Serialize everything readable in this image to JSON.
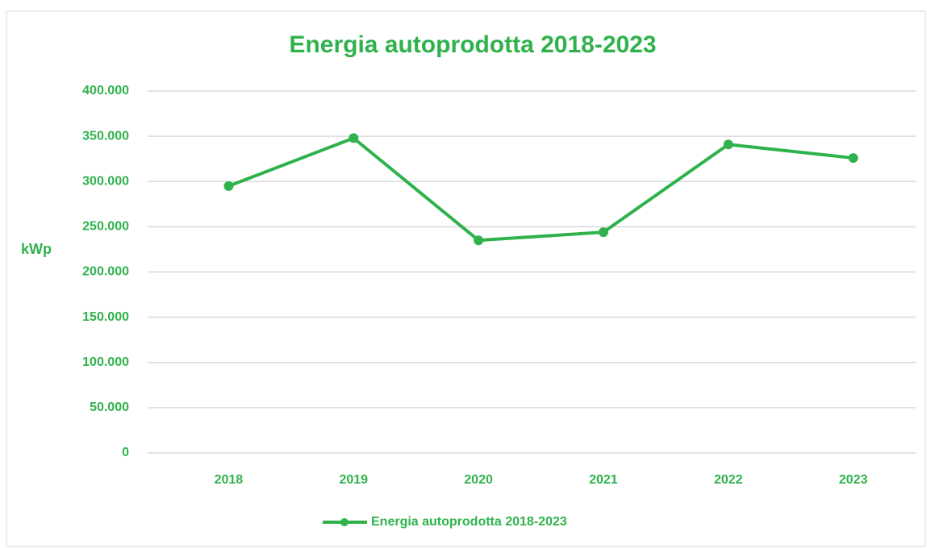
{
  "chart_data": {
    "type": "line",
    "title": "Energia autoprodotta 2018-2023",
    "y_label": "kWp",
    "categories": [
      "2018",
      "2019",
      "2020",
      "2021",
      "2022",
      "2023"
    ],
    "series": [
      {
        "name": "Energia autoprodotta 2018-2023",
        "color": "#2fb24c",
        "values": [
          295000,
          348000,
          235000,
          244000,
          341000,
          326000
        ]
      }
    ],
    "ylim": [
      0,
      400000
    ],
    "yticks": [
      0,
      {
        "value": 50000,
        "label": "50.000"
      },
      {
        "value": 100000,
        "label": "100.000"
      },
      {
        "value": 150000,
        "label": "150.000"
      },
      {
        "value": 200000,
        "label": "200.000"
      },
      {
        "value": 250000,
        "label": "250.000"
      },
      {
        "value": 300000,
        "label": "300.000"
      },
      {
        "value": 350000,
        "label": "350.000"
      },
      {
        "value": 400000,
        "label": "400.000"
      }
    ],
    "grid": true,
    "legend": "bottom"
  }
}
